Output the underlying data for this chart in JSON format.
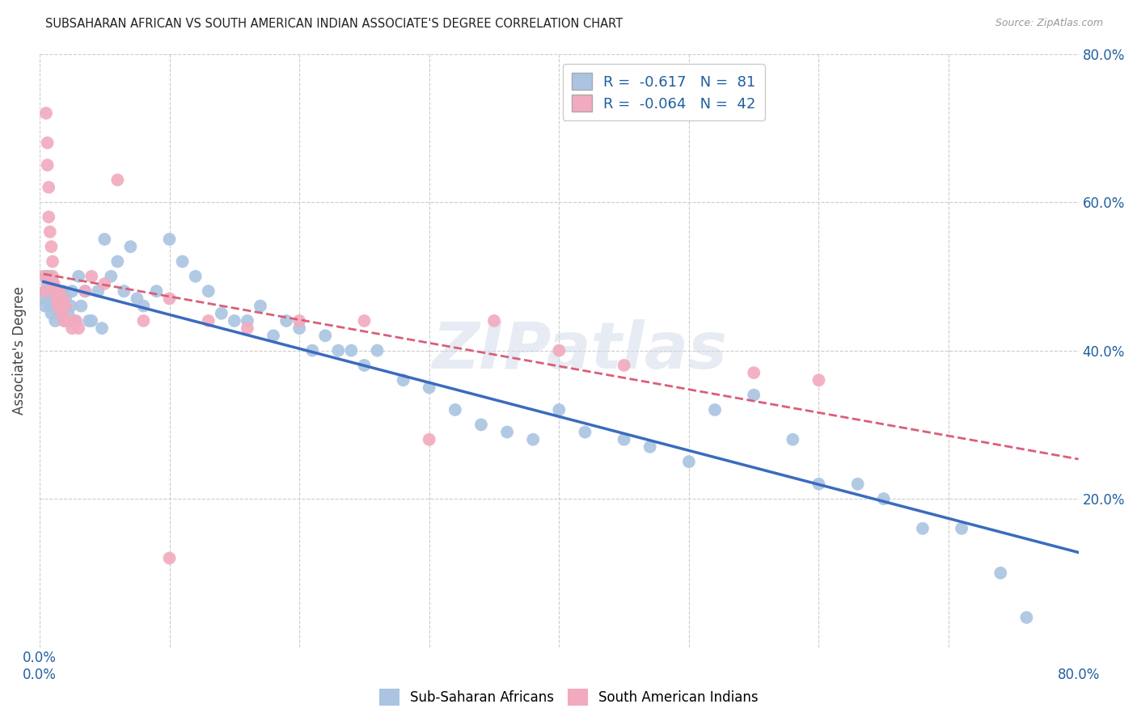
{
  "title": "SUBSAHARAN AFRICAN VS SOUTH AMERICAN INDIAN ASSOCIATE'S DEGREE CORRELATION CHART",
  "source": "Source: ZipAtlas.com",
  "ylabel": "Associate's Degree",
  "xlim": [
    0,
    0.8
  ],
  "ylim": [
    0,
    0.8
  ],
  "yticks": [
    0.0,
    0.2,
    0.4,
    0.6,
    0.8
  ],
  "xticks": [
    0.0,
    0.1,
    0.2,
    0.3,
    0.4,
    0.5,
    0.6,
    0.7,
    0.8
  ],
  "blue_R": "-0.617",
  "blue_N": "81",
  "pink_R": "-0.064",
  "pink_N": "42",
  "blue_color": "#aac4e2",
  "pink_color": "#f2aabe",
  "blue_line_color": "#3a6bbf",
  "pink_line_color": "#d95f7a",
  "legend_label_blue": "Sub-Saharan Africans",
  "legend_label_pink": "South American Indians",
  "watermark": "ZIPatlas",
  "blue_scatter_x": [
    0.003,
    0.004,
    0.005,
    0.005,
    0.006,
    0.007,
    0.007,
    0.008,
    0.008,
    0.009,
    0.01,
    0.01,
    0.011,
    0.012,
    0.012,
    0.013,
    0.014,
    0.015,
    0.015,
    0.016,
    0.017,
    0.018,
    0.019,
    0.02,
    0.022,
    0.024,
    0.025,
    0.027,
    0.03,
    0.032,
    0.035,
    0.038,
    0.04,
    0.045,
    0.048,
    0.05,
    0.055,
    0.06,
    0.065,
    0.07,
    0.075,
    0.08,
    0.09,
    0.1,
    0.11,
    0.12,
    0.13,
    0.14,
    0.15,
    0.16,
    0.17,
    0.18,
    0.19,
    0.2,
    0.21,
    0.22,
    0.23,
    0.24,
    0.25,
    0.26,
    0.28,
    0.3,
    0.32,
    0.34,
    0.36,
    0.38,
    0.4,
    0.42,
    0.45,
    0.47,
    0.5,
    0.52,
    0.55,
    0.58,
    0.6,
    0.63,
    0.65,
    0.68,
    0.71,
    0.74,
    0.76
  ],
  "blue_scatter_y": [
    0.47,
    0.46,
    0.5,
    0.48,
    0.49,
    0.47,
    0.5,
    0.46,
    0.48,
    0.45,
    0.47,
    0.49,
    0.46,
    0.48,
    0.44,
    0.46,
    0.47,
    0.45,
    0.48,
    0.46,
    0.46,
    0.48,
    0.44,
    0.47,
    0.45,
    0.46,
    0.48,
    0.44,
    0.5,
    0.46,
    0.48,
    0.44,
    0.44,
    0.48,
    0.43,
    0.55,
    0.5,
    0.52,
    0.48,
    0.54,
    0.47,
    0.46,
    0.48,
    0.55,
    0.52,
    0.5,
    0.48,
    0.45,
    0.44,
    0.44,
    0.46,
    0.42,
    0.44,
    0.43,
    0.4,
    0.42,
    0.4,
    0.4,
    0.38,
    0.4,
    0.36,
    0.35,
    0.32,
    0.3,
    0.29,
    0.28,
    0.32,
    0.29,
    0.28,
    0.27,
    0.25,
    0.32,
    0.34,
    0.28,
    0.22,
    0.22,
    0.2,
    0.16,
    0.16,
    0.1,
    0.04
  ],
  "pink_scatter_x": [
    0.003,
    0.004,
    0.005,
    0.006,
    0.006,
    0.007,
    0.007,
    0.008,
    0.009,
    0.01,
    0.01,
    0.011,
    0.012,
    0.013,
    0.014,
    0.015,
    0.016,
    0.017,
    0.018,
    0.019,
    0.02,
    0.022,
    0.025,
    0.028,
    0.03,
    0.035,
    0.04,
    0.05,
    0.06,
    0.08,
    0.1,
    0.13,
    0.16,
    0.2,
    0.25,
    0.3,
    0.35,
    0.4,
    0.45,
    0.55,
    0.6,
    0.1
  ],
  "pink_scatter_y": [
    0.5,
    0.48,
    0.72,
    0.68,
    0.65,
    0.62,
    0.58,
    0.56,
    0.54,
    0.52,
    0.5,
    0.49,
    0.48,
    0.47,
    0.46,
    0.48,
    0.46,
    0.45,
    0.47,
    0.44,
    0.46,
    0.44,
    0.43,
    0.44,
    0.43,
    0.48,
    0.5,
    0.49,
    0.63,
    0.44,
    0.47,
    0.44,
    0.43,
    0.44,
    0.44,
    0.28,
    0.44,
    0.4,
    0.38,
    0.37,
    0.36,
    0.12
  ]
}
